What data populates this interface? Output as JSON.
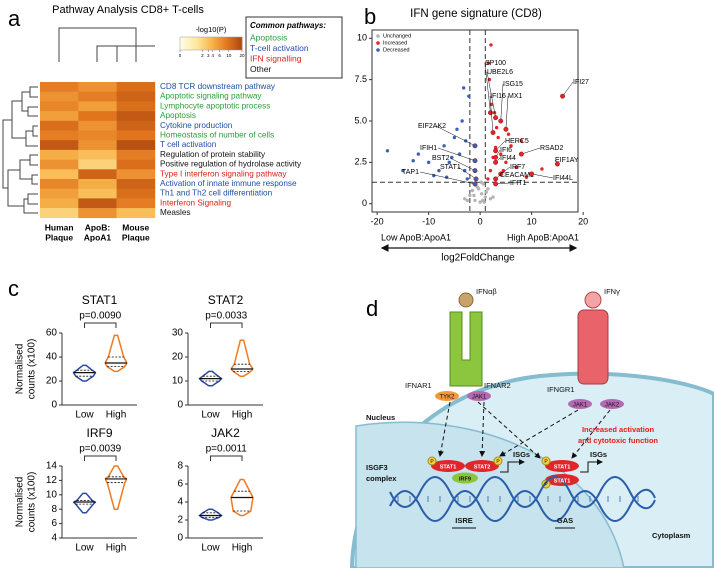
{
  "panel_labels": [
    "a",
    "b",
    "c",
    "d"
  ],
  "chart_data": [
    {
      "type": "heatmap",
      "title": "Pathway Analysis CD8+ T-cells",
      "rows": [
        "CD8 TCR downstream pathway",
        "Apoptotic signaling pathway",
        "Lymphocyte apoptotic process",
        "Apoptosis",
        "Cytokine production",
        "Homeostasis of number of cells",
        "T cell activation",
        "Regulation of protein stability",
        "Positive regulation of hydrolase activity",
        "Type I interferon signaling pathway",
        "Activation of innate immune response",
        "Th1 and Th2 cell differentiation",
        "Interferon Signaling",
        "Measles"
      ],
      "row_colors": [
        "#1f4ea8",
        "#2a9d3a",
        "#2a9d3a",
        "#2a9d3a",
        "#1f4ea8",
        "#2a9d3a",
        "#1f4ea8",
        "#111111",
        "#111111",
        "#e0201b",
        "#1f4ea8",
        "#1f4ea8",
        "#e0201b",
        "#111111"
      ],
      "columns": [
        [
          "Human",
          "Plaque"
        ],
        [
          "ApoB:",
          "ApoA1"
        ],
        [
          "Mouse",
          "Plaque"
        ]
      ],
      "values": [
        [
          8,
          6,
          10
        ],
        [
          6,
          8,
          12
        ],
        [
          7,
          5,
          10
        ],
        [
          5,
          9,
          14
        ],
        [
          10,
          6,
          12
        ],
        [
          8,
          7,
          9
        ],
        [
          14,
          6,
          16
        ],
        [
          4,
          3,
          8
        ],
        [
          6,
          2,
          10
        ],
        [
          3,
          12,
          6
        ],
        [
          7,
          4,
          12
        ],
        [
          5,
          3,
          10
        ],
        [
          4,
          14,
          8
        ],
        [
          2,
          6,
          3
        ]
      ],
      "colorbar": {
        "label": "-log10(P)",
        "clim": [
          0,
          20
        ],
        "ticks": [
          0,
          2,
          3,
          4,
          6,
          10,
          20
        ],
        "scale": "log1p",
        "colors": [
          "#fffce8",
          "#fde9a0",
          "#f8b54a",
          "#e2761e",
          "#a8440d"
        ]
      },
      "legend": {
        "title": "Common pathways:",
        "entries": [
          {
            "name": "Apoptosis",
            "color": "#2a9d3a"
          },
          {
            "name": "T-cell activation",
            "color": "#1f4ea8"
          },
          {
            "name": "IFN signalling",
            "color": "#e0201b"
          },
          {
            "name": "Other",
            "color": "#111111"
          }
        ]
      }
    },
    {
      "type": "scatter",
      "title": "IFN gene signature (CD8)",
      "xlabel": "log2FoldChange",
      "xlim": [
        -21,
        19
      ],
      "ylim": [
        -0.5,
        10.5
      ],
      "xticks": [
        -20,
        -10,
        0,
        10,
        20
      ],
      "yticks": [
        0,
        2.5,
        {
          "value": 5,
          "label": "5.0"
        },
        7.5,
        10
      ],
      "legend": "top-left",
      "thresholds": {
        "x": [
          -2,
          1
        ],
        "y": 1.3
      },
      "direction_labels": [
        "Low ApoB:ApoA1",
        "High ApoB:ApoA1"
      ],
      "series": [
        {
          "name": "Unchanged",
          "color": "#b4b4b4",
          "x": [
            -3,
            -2,
            -1.5,
            -1,
            -0.5,
            0,
            0.3,
            0.6,
            1,
            1.5,
            2,
            -0.8,
            0.5,
            -1.2,
            1.2,
            0.2,
            -0.3,
            2.5,
            -2.5,
            0.8
          ],
          "y": [
            0.3,
            0.5,
            0.8,
            0.2,
            1,
            0.1,
            0.6,
            1.2,
            0.4,
            0.9,
            0.3,
            1.1,
            0.2,
            0.5,
            0.7,
            1.3,
            0.9,
            0.4,
            0.2,
            0.1
          ]
        },
        {
          "name": "Increased",
          "color": "#e8242a",
          "x": [
            1.5,
            2,
            2.5,
            3,
            3.5,
            4,
            5,
            6,
            7,
            8,
            2.2,
            3.2,
            4.5,
            1.8,
            2.8,
            9,
            12,
            5.5,
            1.6,
            2.1
          ],
          "y": [
            1.5,
            2,
            2.8,
            3.4,
            4,
            3,
            2.5,
            3.5,
            2.2,
            3.8,
            6,
            4.6,
            2,
            7.5,
            5.5,
            1.6,
            2.1,
            4.2,
            8.5,
            9.6
          ]
        },
        {
          "name": "Decreased",
          "color": "#3a62b5",
          "x": [
            -2.5,
            -3,
            -4,
            -5,
            -6,
            -7,
            -8,
            -10,
            -12,
            -15,
            -3.5,
            -4.5,
            -2.2,
            -6.5,
            -9,
            -2.8,
            -5.5,
            -3.2,
            -13,
            -18
          ],
          "y": [
            1.5,
            2,
            3,
            4,
            2.5,
            3.5,
            2,
            2.5,
            3,
            2,
            5,
            4.5,
            6.5,
            1.6,
            1.7,
            3.8,
            2.8,
            7,
            2.6,
            3.2
          ]
        }
      ],
      "annotations": [
        {
          "label": "SP100",
          "x": 2,
          "y": 5.5
        },
        {
          "label": "UBE2L6",
          "x": 3,
          "y": 5.2
        },
        {
          "label": "ISG15",
          "x": 4,
          "y": 5.0
        },
        {
          "label": "IFI16",
          "x": 2.5,
          "y": 4.3
        },
        {
          "label": "MX1",
          "x": 5,
          "y": 4.5
        },
        {
          "label": "IFI27",
          "x": 16,
          "y": 6.5
        },
        {
          "label": "HERC5",
          "x": 3,
          "y": 3.2
        },
        {
          "label": "RSAD2",
          "x": 8,
          "y": 3.0
        },
        {
          "label": "IFI6",
          "x": 3,
          "y": 2.8
        },
        {
          "label": "IFI44",
          "x": 3,
          "y": 2.5
        },
        {
          "label": "EIF1AY",
          "x": 15,
          "y": 2.4
        },
        {
          "label": "IRF7",
          "x": 4,
          "y": 1.8
        },
        {
          "label": "CEACAM1",
          "x": 3,
          "y": 1.5
        },
        {
          "label": "IFIT1",
          "x": 3,
          "y": 1.2
        },
        {
          "label": "IFI44L",
          "x": 10,
          "y": 1.8
        },
        {
          "label": "EIF2AK2",
          "x": -1,
          "y": 3.5
        },
        {
          "label": "IFIH1",
          "x": -1,
          "y": 2.6
        },
        {
          "label": "BST2",
          "x": -1,
          "y": 2
        },
        {
          "label": "STAT1",
          "x": -0.8,
          "y": 1.5
        },
        {
          "label": "TAP1",
          "x": -1,
          "y": 1.2
        }
      ]
    },
    {
      "type": "violin",
      "title": "STAT1",
      "p_label": "p=0.0090",
      "ylabel": [
        "Normalised",
        "counts (x100)"
      ],
      "ylim": [
        0,
        60
      ],
      "yticks": [
        0,
        20,
        40,
        60
      ],
      "categories": [
        "Low",
        "High"
      ],
      "groups": [
        {
          "color": "#2b4ba3",
          "min": 20,
          "q1": 24,
          "median": 27,
          "q3": 29,
          "max": 33
        },
        {
          "color": "#f07a20",
          "min": 28,
          "q1": 32,
          "median": 35,
          "q3": 40,
          "max": 58
        }
      ]
    },
    {
      "type": "violin",
      "title": "STAT2",
      "p_label": "p=0.0033",
      "ylim": [
        0,
        30
      ],
      "yticks": [
        0,
        10,
        20,
        30
      ],
      "categories": [
        "Low",
        "High"
      ],
      "groups": [
        {
          "color": "#2b4ba3",
          "min": 8,
          "q1": 10,
          "median": 11,
          "q3": 12,
          "max": 14
        },
        {
          "color": "#f07a20",
          "min": 12,
          "q1": 14,
          "median": 15,
          "q3": 17,
          "max": 27
        }
      ]
    },
    {
      "type": "violin",
      "title": "IRF9",
      "p_label": "p=0.0039",
      "ylabel": [
        "Normalised",
        "counts (x100)"
      ],
      "ylim": [
        4,
        14
      ],
      "yticks": [
        4,
        6,
        8,
        10,
        12,
        14
      ],
      "categories": [
        "Low",
        "High"
      ],
      "groups": [
        {
          "color": "#2b4ba3",
          "min": 7.5,
          "q1": 8.7,
          "median": 9,
          "q3": 9.2,
          "max": 10.2
        },
        {
          "color": "#f07a20",
          "min": 8,
          "q1": 11.7,
          "median": 12.2,
          "q3": 12.5,
          "max": 14
        }
      ]
    },
    {
      "type": "violin",
      "title": "JAK2",
      "p_label": "p=0.0011",
      "ylim": [
        0,
        8
      ],
      "yticks": [
        0,
        2,
        4,
        6,
        8
      ],
      "categories": [
        "Low",
        "High"
      ],
      "groups": [
        {
          "color": "#2b4ba3",
          "min": 2,
          "q1": 2.3,
          "median": 2.5,
          "q3": 2.8,
          "max": 3.2
        },
        {
          "color": "#f07a20",
          "min": 2.5,
          "q1": 3,
          "median": 4.5,
          "q3": 5.2,
          "max": 6.5
        }
      ]
    }
  ],
  "diagram": {
    "ifn_ab": "IFNαβ",
    "ifn_g": "IFNγ",
    "ifnar1": "IFNAR1",
    "ifnar2": "IFNAR2",
    "tyk2": "TYK2",
    "jak1_a": "JAK1",
    "ifngr1": "IFNGR1",
    "jak1_b": "JAK1",
    "jak2": "JAK2",
    "nucleus": "Nucleus",
    "activation_1": "Increased activation",
    "activation_2": "and cytotoxic function",
    "isgf3_1": "ISGF3",
    "isgf3_2": "complex",
    "stat1_a": "STAT1",
    "stat2": "STAT2",
    "irf9": "IRF9",
    "isgs_a": "ISGs",
    "stat1_b": "STAT1",
    "stat1_c": "STAT1",
    "isgs_b": "ISGs",
    "phospho": "P",
    "isre": "ISRE",
    "gas": "GAS",
    "cytoplasm": "Cytoplasm"
  }
}
